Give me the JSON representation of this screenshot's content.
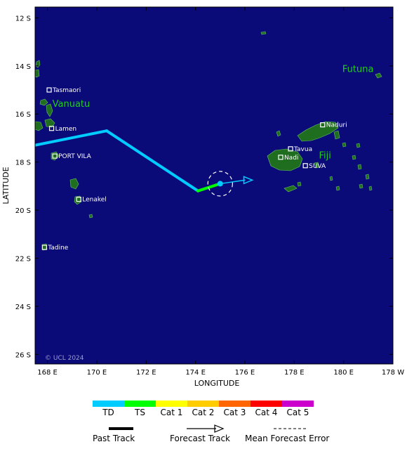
{
  "map": {
    "lon_range": [
      167.5,
      181.5
    ],
    "lat_range": [
      12,
      26.5
    ],
    "ocean_color": "#0a0a78",
    "land_color": "#1f6e1f",
    "x_axis_title": "LONGITUDE",
    "y_axis_title": "LATITUDE",
    "lon_ticks": [
      {
        "value": 168,
        "label": "168 E"
      },
      {
        "value": 170,
        "label": "170 E"
      },
      {
        "value": 172,
        "label": "172 E"
      },
      {
        "value": 174,
        "label": "174 E"
      },
      {
        "value": 176,
        "label": "176 E"
      },
      {
        "value": 178,
        "label": "178 E"
      },
      {
        "value": 180,
        "label": "180 E"
      },
      {
        "value": 182,
        "label": "178 W"
      }
    ],
    "lat_ticks": [
      {
        "value": 12,
        "label": "12 S"
      },
      {
        "value": 14,
        "label": "14 S"
      },
      {
        "value": 16,
        "label": "16 S"
      },
      {
        "value": 18,
        "label": "18 S"
      },
      {
        "value": 20,
        "label": "20 S"
      },
      {
        "value": 22,
        "label": "22 S"
      },
      {
        "value": 24,
        "label": "24 S"
      },
      {
        "value": 26,
        "label": "26 S"
      }
    ],
    "copyright": "© UCL 2024"
  },
  "regions": [
    {
      "name": "Vanuatu",
      "lon": 168.2,
      "lat": 15.7
    },
    {
      "name": "Fiji",
      "lon": 179.0,
      "lat": 17.85
    },
    {
      "name": "Futuna",
      "lon": 179.95,
      "lat": 14.25
    }
  ],
  "places": [
    {
      "name": "Tasmaori",
      "lon": 168.07,
      "lat": 15.0
    },
    {
      "name": "Lamen",
      "lon": 168.17,
      "lat": 16.6
    },
    {
      "name": "PORT VILA",
      "lon": 168.3,
      "lat": 17.75
    },
    {
      "name": "Lenakel",
      "lon": 169.27,
      "lat": 19.55
    },
    {
      "name": "Tadine",
      "lon": 167.88,
      "lat": 21.55
    },
    {
      "name": "Naduri",
      "lon": 179.15,
      "lat": 16.45
    },
    {
      "name": "Tavua",
      "lon": 177.85,
      "lat": 17.45
    },
    {
      "name": "Nadi",
      "lon": 177.45,
      "lat": 17.8
    },
    {
      "name": "SUVA",
      "lon": 178.45,
      "lat": 18.15
    }
  ],
  "track": {
    "past": [
      {
        "lon": 167.5,
        "lat": 17.3,
        "category": "TS"
      },
      {
        "lon": 170.4,
        "lat": 16.7,
        "category": "TD"
      },
      {
        "lon": 174.1,
        "lat": 19.2,
        "category": "TS"
      },
      {
        "lon": 175.0,
        "lat": 18.9,
        "category": "TS"
      }
    ],
    "current": {
      "lon": 175.0,
      "lat": 18.9,
      "category": "TD"
    },
    "forecast_end": {
      "lon": 176.3,
      "lat": 18.75,
      "category": "TD"
    },
    "error_circle_radius_deg": 0.5
  },
  "legend": {
    "categories": [
      {
        "label": "TD",
        "color": "#00ccff"
      },
      {
        "label": "TS",
        "color": "#00ff00"
      },
      {
        "label": "Cat 1",
        "color": "#ffff00"
      },
      {
        "label": "Cat 2",
        "color": "#ffcc00"
      },
      {
        "label": "Cat 3",
        "color": "#ff6600"
      },
      {
        "label": "Cat 4",
        "color": "#ff0000"
      },
      {
        "label": "Cat 5",
        "color": "#cc00cc"
      }
    ],
    "past_track_label": "Past Track",
    "forecast_track_label": "Forecast Track",
    "error_label": "Mean Forecast Error"
  }
}
